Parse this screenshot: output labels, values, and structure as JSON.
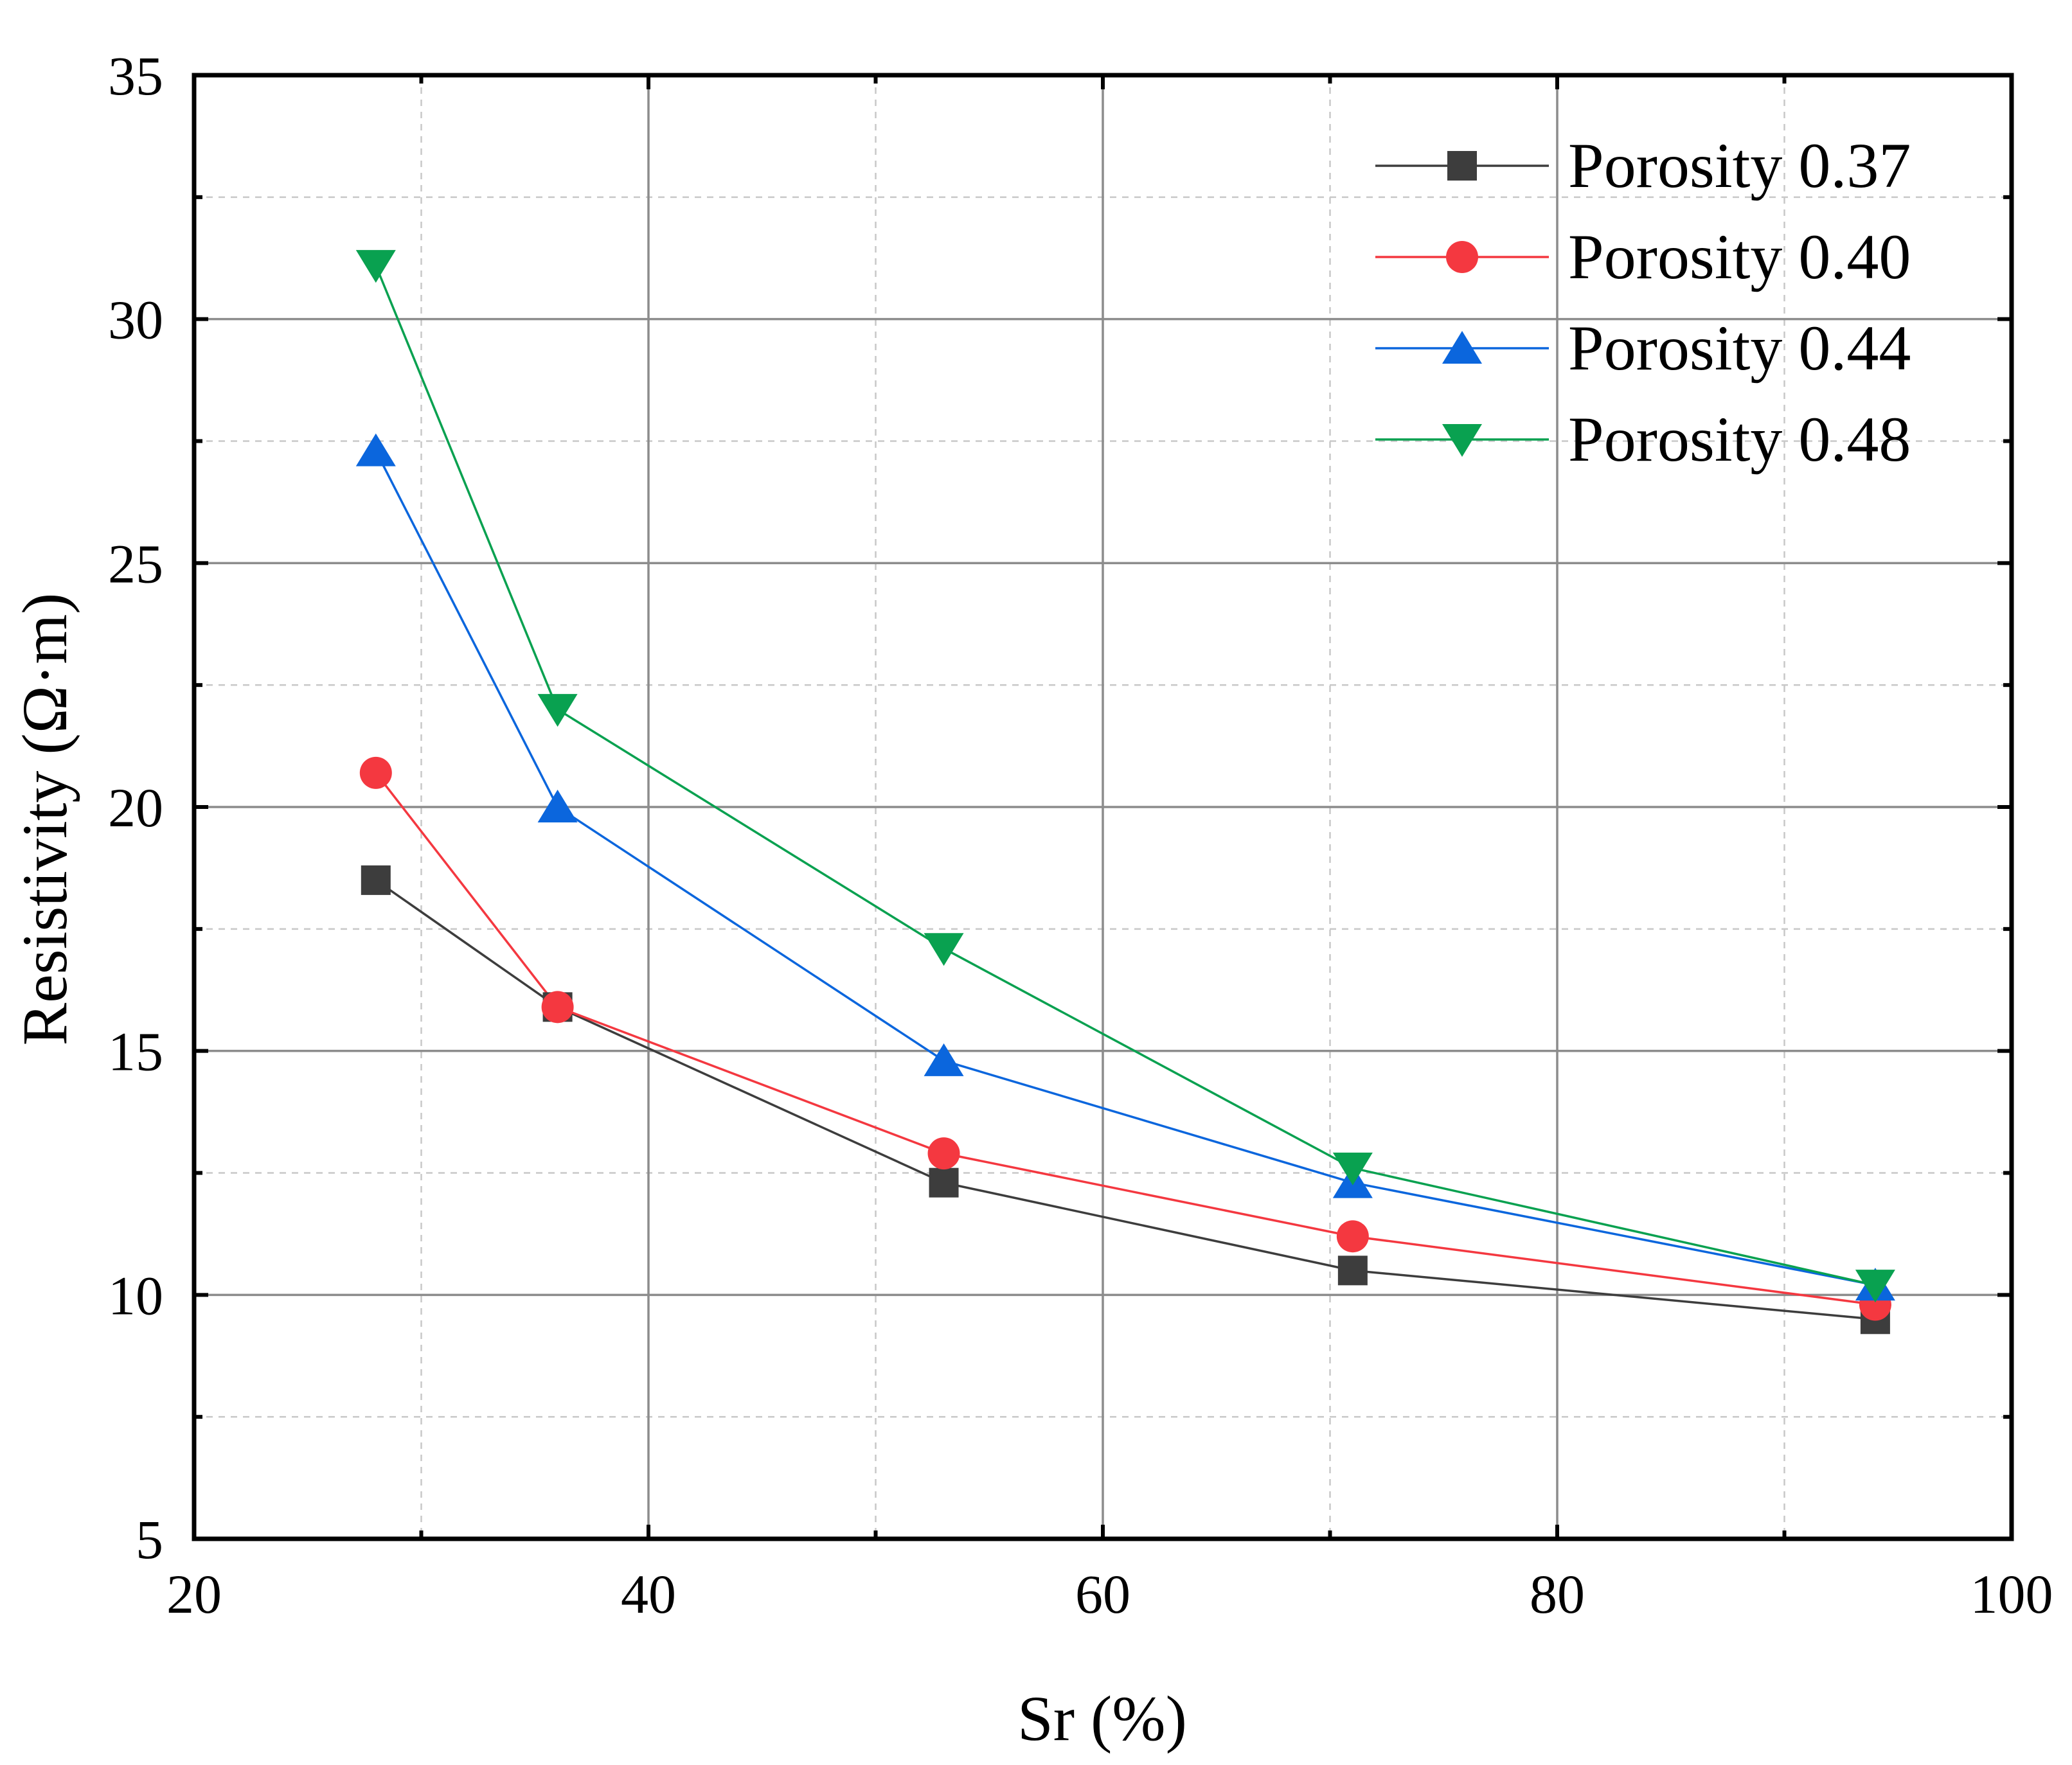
{
  "chart_data": {
    "type": "line",
    "title": "",
    "xlabel": "Sr (%)",
    "ylabel": "Resistivity (Ω·m)",
    "xlim": [
      20,
      100
    ],
    "ylim": [
      5,
      35
    ],
    "x_major_ticks": [
      20,
      40,
      60,
      80,
      100
    ],
    "y_major_ticks": [
      5,
      10,
      15,
      20,
      25,
      30,
      35
    ],
    "x_tick_labels": [
      "20",
      "40",
      "60",
      "80",
      "100"
    ],
    "y_tick_labels": [
      "5",
      "10",
      "15",
      "20",
      "25",
      "30",
      "35"
    ],
    "x_minor_ticks": [
      30,
      50,
      70,
      90
    ],
    "y_minor_ticks": [
      7.5,
      12.5,
      17.5,
      22.5,
      27.5,
      32.5
    ],
    "grid": true,
    "legend_position": "top-right",
    "series": [
      {
        "name": "Porosity 0.37",
        "color": "#3d3d3d",
        "marker": "square",
        "x": [
          28,
          36,
          53,
          71,
          94
        ],
        "y": [
          18.5,
          15.9,
          12.3,
          10.5,
          9.5
        ]
      },
      {
        "name": "Porosity 0.40",
        "color": "#f43840",
        "marker": "circle",
        "x": [
          28,
          36,
          53,
          71,
          94
        ],
        "y": [
          20.7,
          15.9,
          12.9,
          11.2,
          9.8
        ]
      },
      {
        "name": "Porosity 0.44",
        "color": "#0b66dd",
        "marker": "triangle-up",
        "x": [
          28,
          36,
          53,
          71,
          94
        ],
        "y": [
          27.3,
          20.0,
          14.8,
          12.3,
          10.2
        ]
      },
      {
        "name": "Porosity 0.48",
        "color": "#09a150",
        "marker": "triangle-down",
        "x": [
          28,
          36,
          53,
          71,
          94
        ],
        "y": [
          31.1,
          22.0,
          17.1,
          12.6,
          10.2
        ]
      }
    ]
  }
}
